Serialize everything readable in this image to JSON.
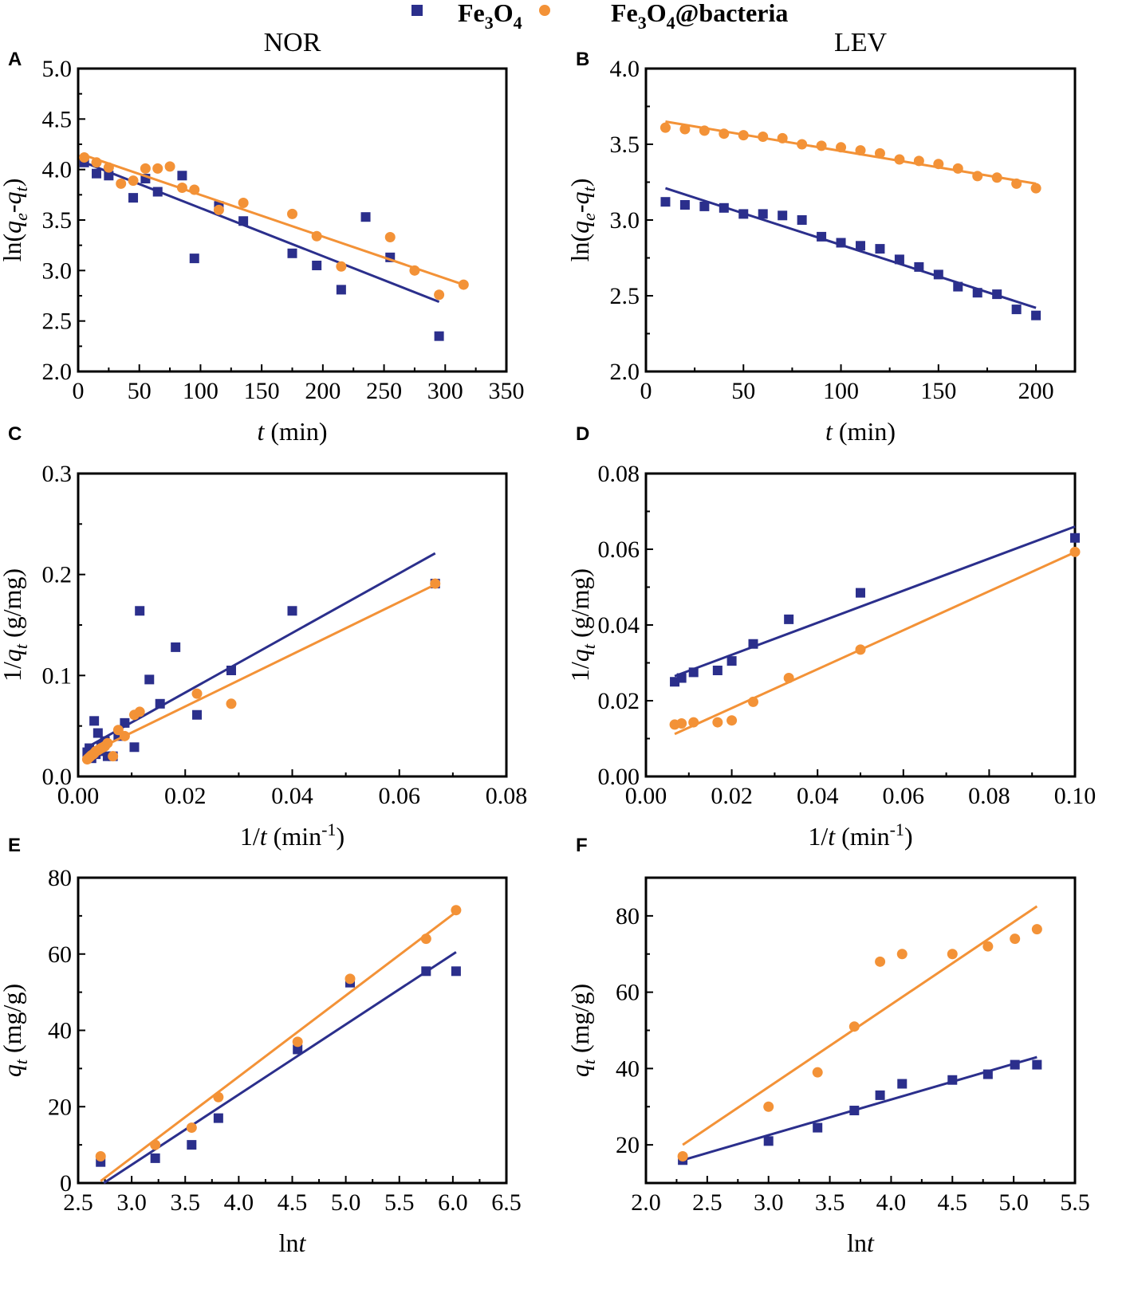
{
  "colors": {
    "fe3o4": "#2b2f8c",
    "bacteria": "#f39237"
  },
  "legend": {
    "fe3o4": {
      "base": "Fe",
      "sub1": "3",
      "mid": "O",
      "sub2": "4",
      "tail": ""
    },
    "bacteria": {
      "base": "Fe",
      "sub1": "3",
      "mid": "O",
      "sub2": "4",
      "tail": "@bacteria"
    }
  },
  "chart_data": [
    {
      "panel": "A",
      "title": "NOR",
      "type": "scatter",
      "xlabel": "t (min)",
      "ylabel": "ln(qe-qt)",
      "xlim": [
        0,
        350
      ],
      "ylim": [
        2.0,
        5.0
      ],
      "xticks": [
        "0",
        "50",
        "100",
        "150",
        "200",
        "250",
        "300",
        "350"
      ],
      "yticks": [
        "2.0",
        "2.5",
        "3.0",
        "3.5",
        "4.0",
        "4.5",
        "5.0"
      ],
      "series": [
        {
          "name": "Fe3O4",
          "marker": "square",
          "x": [
            5,
            15,
            25,
            45,
            55,
            65,
            85,
            95,
            115,
            135,
            175,
            195,
            215,
            235,
            255,
            295
          ],
          "y": [
            4.07,
            3.96,
            3.94,
            3.72,
            3.91,
            3.78,
            3.94,
            3.12,
            3.64,
            3.49,
            3.17,
            3.05,
            2.81,
            3.53,
            3.13,
            2.35
          ],
          "fit": [
            [
              3,
              4.08
            ],
            [
              295,
              2.69
            ]
          ]
        },
        {
          "name": "Fe3O4@bacteria",
          "marker": "circle",
          "x": [
            5,
            15,
            25,
            35,
            45,
            55,
            65,
            75,
            85,
            95,
            115,
            135,
            175,
            195,
            215,
            255,
            275,
            295,
            315
          ],
          "y": [
            4.12,
            4.07,
            4.02,
            3.86,
            3.89,
            4.01,
            4.01,
            4.03,
            3.82,
            3.8,
            3.6,
            3.67,
            3.56,
            3.34,
            3.04,
            3.33,
            3.0,
            2.76,
            2.86
          ],
          "fit": [
            [
              3,
              4.15
            ],
            [
              315,
              2.86
            ]
          ]
        }
      ]
    },
    {
      "panel": "B",
      "title": "LEV",
      "type": "scatter",
      "xlabel": "t (min)",
      "ylabel": "ln(qe-qt)",
      "xlim": [
        0,
        220
      ],
      "ylim": [
        2.0,
        4.0
      ],
      "xticks": [
        "0",
        "50",
        "100",
        "150",
        "200"
      ],
      "yticks": [
        "2.0",
        "2.5",
        "3.0",
        "3.5",
        "4.0"
      ],
      "series": [
        {
          "name": "Fe3O4",
          "marker": "square",
          "x": [
            10,
            20,
            30,
            40,
            50,
            60,
            70,
            80,
            90,
            100,
            110,
            120,
            130,
            140,
            150,
            160,
            170,
            180,
            190,
            200
          ],
          "y": [
            3.12,
            3.1,
            3.09,
            3.08,
            3.04,
            3.04,
            3.03,
            3.0,
            2.89,
            2.85,
            2.83,
            2.81,
            2.74,
            2.69,
            2.64,
            2.56,
            2.52,
            2.51,
            2.41,
            2.37
          ],
          "fit": [
            [
              10,
              3.21
            ],
            [
              200,
              2.42
            ]
          ]
        },
        {
          "name": "Fe3O4@bacteria",
          "marker": "circle",
          "x": [
            10,
            20,
            30,
            40,
            50,
            60,
            70,
            80,
            90,
            100,
            110,
            120,
            130,
            140,
            150,
            160,
            170,
            180,
            190,
            200
          ],
          "y": [
            3.61,
            3.6,
            3.59,
            3.57,
            3.56,
            3.55,
            3.54,
            3.5,
            3.49,
            3.48,
            3.46,
            3.44,
            3.4,
            3.39,
            3.37,
            3.34,
            3.29,
            3.28,
            3.24,
            3.21
          ],
          "fit": [
            [
              10,
              3.65
            ],
            [
              200,
              3.24
            ]
          ]
        }
      ]
    },
    {
      "panel": "C",
      "title": "",
      "type": "scatter",
      "xlabel": "1/t (min-1)",
      "ylabel": "1/qt (g/mg)",
      "xlim": [
        0,
        0.08
      ],
      "ylim": [
        0,
        0.3
      ],
      "xticks": [
        "0.00",
        "0.02",
        "0.04",
        "0.06",
        "0.08"
      ],
      "yticks": [
        "0.0",
        "0.1",
        "0.2",
        "0.3"
      ],
      "series": [
        {
          "name": "Fe3O4",
          "marker": "square",
          "x": [
            0.0017,
            0.0019,
            0.0021,
            0.0023,
            0.0025,
            0.0028,
            0.003,
            0.0033,
            0.0037,
            0.004,
            0.0043,
            0.005,
            0.0055,
            0.0065,
            0.0075,
            0.0087,
            0.0105,
            0.0115,
            0.0133,
            0.0153,
            0.0182,
            0.0222,
            0.0286,
            0.04,
            0.0667
          ],
          "y": [
            0.024,
            0.019,
            0.028,
            0.02,
            0.018,
            0.025,
            0.055,
            0.022,
            0.043,
            0.025,
            0.03,
            0.035,
            0.02,
            0.02,
            0.04,
            0.053,
            0.029,
            0.164,
            0.096,
            0.072,
            0.128,
            0.061,
            0.105,
            0.164,
            0.191
          ],
          "fit": [
            [
              0.0017,
              0.029
            ],
            [
              0.0667,
              0.221
            ]
          ]
        },
        {
          "name": "Fe3O4@bacteria",
          "marker": "circle",
          "x": [
            0.0017,
            0.0019,
            0.0021,
            0.0023,
            0.0025,
            0.0028,
            0.003,
            0.0033,
            0.0037,
            0.004,
            0.0043,
            0.0047,
            0.005,
            0.0055,
            0.0065,
            0.0075,
            0.0087,
            0.0105,
            0.0115,
            0.0222,
            0.0286,
            0.0667
          ],
          "y": [
            0.017,
            0.018,
            0.019,
            0.02,
            0.021,
            0.022,
            0.023,
            0.025,
            0.026,
            0.027,
            0.028,
            0.029,
            0.03,
            0.033,
            0.02,
            0.046,
            0.04,
            0.061,
            0.064,
            0.082,
            0.072,
            0.191
          ],
          "fit": [
            [
              0.0017,
              0.022
            ],
            [
              0.0667,
              0.19
            ]
          ]
        }
      ]
    },
    {
      "panel": "D",
      "title": "",
      "type": "scatter",
      "xlabel": "1/t (min-1)",
      "ylabel": "1/qt (g/mg)",
      "xlim": [
        0,
        0.1
      ],
      "ylim": [
        0,
        0.08
      ],
      "xticks": [
        "0.00",
        "0.02",
        "0.04",
        "0.06",
        "0.08",
        "0.10"
      ],
      "yticks": [
        "0.00",
        "0.02",
        "0.04",
        "0.06",
        "0.08"
      ],
      "series": [
        {
          "name": "Fe3O4",
          "marker": "square",
          "x": [
            0.0067,
            0.0083,
            0.0111,
            0.0167,
            0.02,
            0.025,
            0.0333,
            0.05,
            0.1
          ],
          "y": [
            0.025,
            0.026,
            0.0275,
            0.028,
            0.0305,
            0.035,
            0.0415,
            0.0485,
            0.063
          ],
          "fit": [
            [
              0.0067,
              0.0265
            ],
            [
              0.1,
              0.066
            ]
          ]
        },
        {
          "name": "Fe3O4@bacteria",
          "marker": "circle",
          "x": [
            0.0067,
            0.0083,
            0.0111,
            0.0167,
            0.02,
            0.025,
            0.0333,
            0.05,
            0.1
          ],
          "y": [
            0.0137,
            0.014,
            0.0143,
            0.0143,
            0.0148,
            0.0197,
            0.026,
            0.0335,
            0.0593
          ],
          "fit": [
            [
              0.0067,
              0.0112
            ],
            [
              0.1,
              0.0592
            ]
          ]
        }
      ]
    },
    {
      "panel": "E",
      "title": "",
      "type": "scatter",
      "xlabel": "lnt",
      "ylabel": "qt (mg/g)",
      "xlim": [
        2.5,
        6.5
      ],
      "ylim": [
        0,
        80
      ],
      "xticks": [
        "2.5",
        "3.0",
        "3.5",
        "4.0",
        "4.5",
        "5.0",
        "5.5",
        "6.0",
        "6.5"
      ],
      "yticks": [
        "0",
        "20",
        "40",
        "60",
        "80"
      ],
      "series": [
        {
          "name": "Fe3O4",
          "marker": "square",
          "x": [
            2.71,
            3.22,
            3.56,
            3.81,
            4.55,
            5.04,
            5.75,
            6.03
          ],
          "y": [
            5.5,
            6.5,
            10,
            17,
            35,
            52.5,
            55.5,
            55.5
          ],
          "fit": [
            [
              2.74,
              0
            ],
            [
              6.03,
              60.5
            ]
          ]
        },
        {
          "name": "Fe3O4@bacteria",
          "marker": "circle",
          "x": [
            2.71,
            3.22,
            3.56,
            3.81,
            4.55,
            5.04,
            5.75,
            6.03
          ],
          "y": [
            7,
            10,
            14.5,
            22.5,
            37,
            53.5,
            64,
            71.5
          ],
          "fit": [
            [
              2.71,
              0.5
            ],
            [
              6.03,
              71
            ]
          ]
        }
      ]
    },
    {
      "panel": "F",
      "title": "",
      "type": "scatter",
      "xlabel": "lnt",
      "ylabel": "qt (mg/g)",
      "xlim": [
        2.0,
        5.5
      ],
      "ylim": [
        10,
        90
      ],
      "xticks": [
        "2.0",
        "2.5",
        "3.0",
        "3.5",
        "4.0",
        "4.5",
        "5.0",
        "5.5"
      ],
      "yticks": [
        "20",
        "40",
        "60",
        "80"
      ],
      "series": [
        {
          "name": "Fe3O4",
          "marker": "square",
          "x": [
            2.3,
            3.0,
            3.4,
            3.7,
            3.91,
            4.09,
            4.5,
            4.79,
            5.01,
            5.19
          ],
          "y": [
            16,
            21,
            24.5,
            29,
            33,
            36,
            37,
            38.5,
            41,
            41
          ],
          "fit": [
            [
              2.3,
              16
            ],
            [
              5.19,
              43
            ]
          ]
        },
        {
          "name": "Fe3O4@bacteria",
          "marker": "circle",
          "x": [
            2.3,
            3.0,
            3.4,
            3.7,
            3.91,
            4.09,
            4.5,
            4.79,
            5.01,
            5.19
          ],
          "y": [
            17,
            30,
            39,
            51,
            68,
            70,
            70,
            72,
            74,
            76.5
          ],
          "fit": [
            [
              2.3,
              20
            ],
            [
              5.19,
              82.5
            ]
          ]
        }
      ]
    }
  ]
}
